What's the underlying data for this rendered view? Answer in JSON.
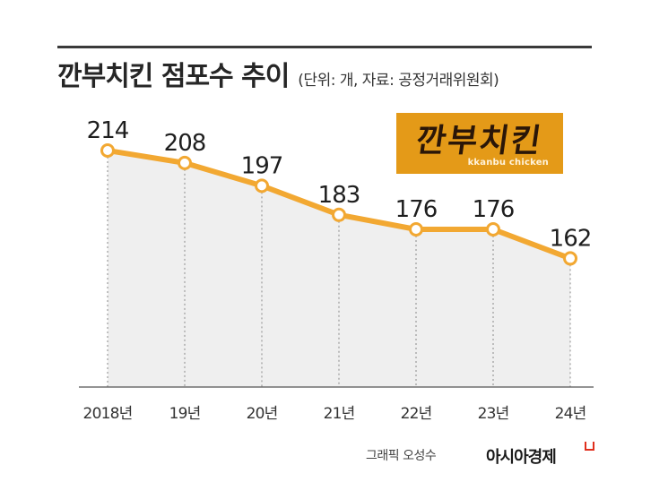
{
  "header": {
    "title": "깐부치킨 점포수 추이",
    "unit_note": "(단위: 개, 자료: 공정거래위원회)"
  },
  "logo": {
    "main_text": "깐부치킨",
    "sub_text": "kkanbu chicken"
  },
  "footer": {
    "credit": "그래픽 오성수",
    "brand": "아시아경제"
  },
  "colors": {
    "line": "#f2a832",
    "area": "#efefef",
    "marker_fill": "#ffffff",
    "logo_bg": "#e49a18",
    "brand_mark": "#e0301e"
  },
  "chart_data": {
    "type": "line",
    "title": "깐부치킨 점포수 추이",
    "categories": [
      "2018년",
      "19년",
      "20년",
      "21년",
      "22년",
      "23년",
      "24년"
    ],
    "values": [
      214,
      208,
      197,
      183,
      176,
      176,
      162
    ],
    "data_labels": [
      "214",
      "208",
      "197",
      "183",
      "176",
      "176",
      "162"
    ],
    "xlabel": "",
    "ylabel": "",
    "ylim": [
      100,
      214
    ],
    "grid": false,
    "area_fill": true
  }
}
